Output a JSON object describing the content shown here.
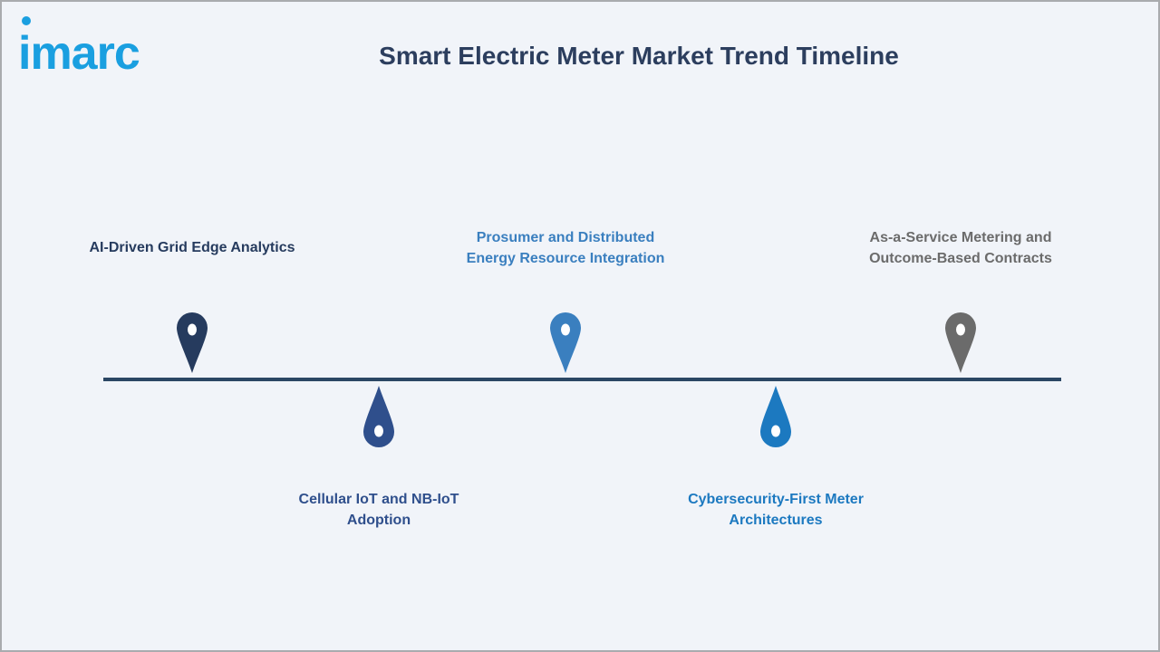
{
  "logo": {
    "text": "imarc",
    "color": "#1a9fe0"
  },
  "title": "Smart Electric Meter Market Trend Timeline",
  "timeline": {
    "line_color": "#2b4764",
    "items": [
      {
        "label": "AI-Driven Grid Edge Analytics",
        "position": "above",
        "color": "#263b5e"
      },
      {
        "label": "Cellular IoT and NB-IoT\nAdoption",
        "position": "below",
        "color": "#2f4f8c"
      },
      {
        "label": "Prosumer and Distributed\nEnergy Resource Integration",
        "position": "above",
        "color": "#3a7fbf"
      },
      {
        "label": "Cybersecurity-First Meter\nArchitectures",
        "position": "below",
        "color": "#1c79c0"
      },
      {
        "label": "As-a-Service Metering and\nOutcome-Based Contracts",
        "position": "above",
        "color": "#6b6b6b"
      }
    ]
  }
}
